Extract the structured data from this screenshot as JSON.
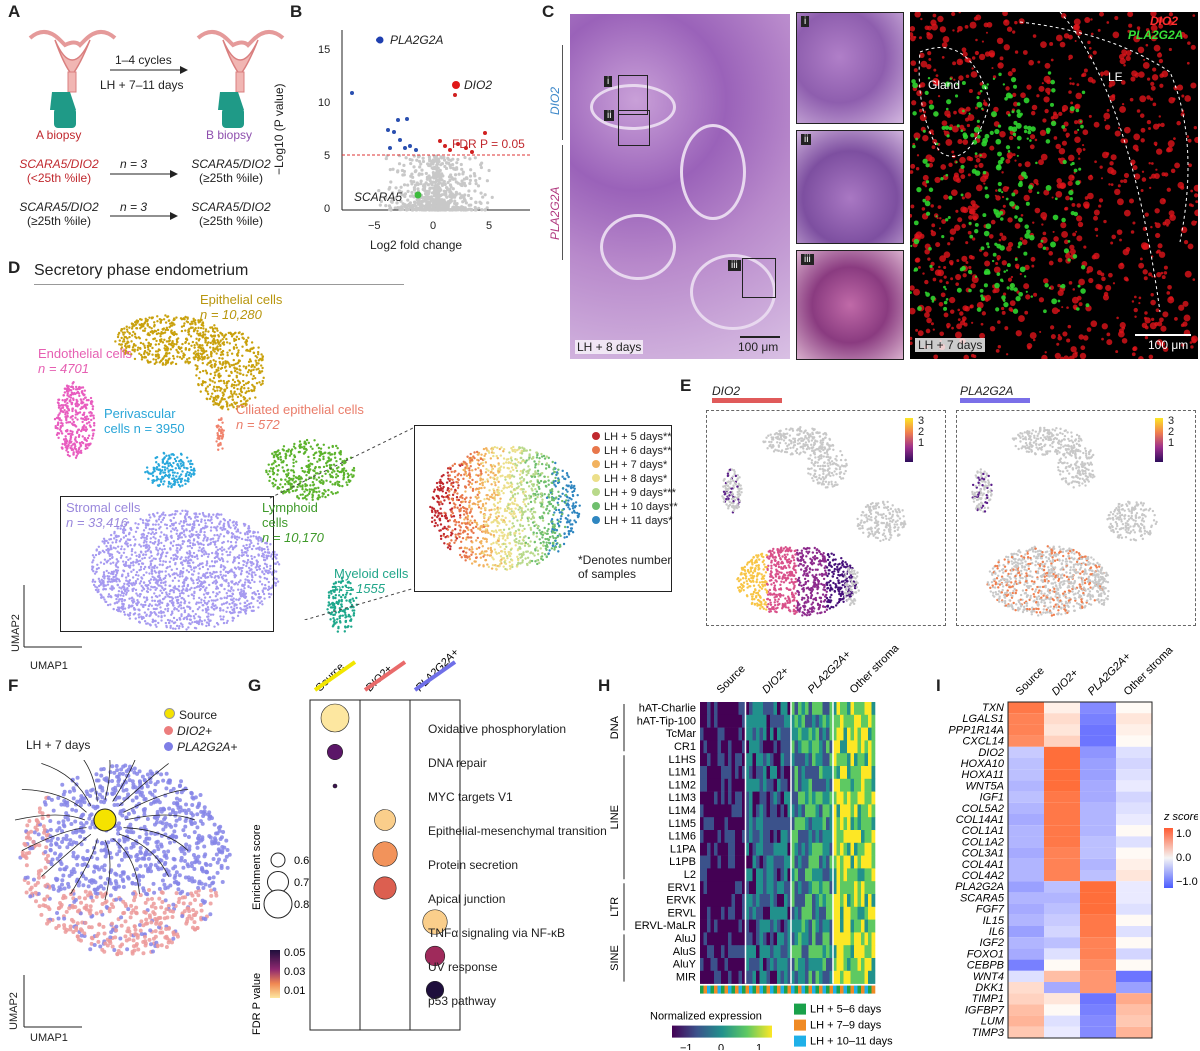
{
  "panels": {
    "A": {
      "label": "A",
      "cycles": "1–4 cycles",
      "timing": "LH + 7–11 days",
      "a_biopsy": "A biopsy",
      "b_biopsy": "B biopsy",
      "row1_left": [
        "SCARA5/DIO2",
        "(<25th %ile)"
      ],
      "row1_n": "n = 3",
      "row1_right": [
        "SCARA5/DIO2",
        "(≥25th %ile)"
      ],
      "row2_left": [
        "SCARA5/DIO2",
        "(≥25th %ile)"
      ],
      "row2_n": "n = 3",
      "row2_right": [
        "SCARA5/DIO2",
        "(≥25th %ile)"
      ]
    },
    "B": {
      "label": "B",
      "ylabel": "−Log10 (P value)",
      "xlabel": "Log2 fold change",
      "fdr_label": "FDR P = 0.05",
      "gene_pla2g2a": "PLA2G2A",
      "gene_dio2": "DIO2",
      "gene_scara5": "SCARA5",
      "x_ticks": [
        "−5",
        "0",
        "5"
      ],
      "y_ticks": [
        "0",
        "5",
        "10",
        "15"
      ]
    },
    "C": {
      "label": "C",
      "side_dio2": "DIO2",
      "side_pla2g2a": "PLA2G2A",
      "box_i": "i",
      "box_ii": "ii",
      "box_iii": "iii",
      "hist_caption": "LH + 8 days",
      "scale": "100 μm",
      "fluor_dio2": "DIO2",
      "fluor_pla2g2a": "PLA2G2A",
      "gland": "Gland",
      "le": "LE",
      "fluor_caption": "LH + 7 days",
      "fluor_scale": "100 μm"
    },
    "D": {
      "label": "D",
      "title": "Secretory phase endometrium",
      "epithelial": [
        "Epithelial cells",
        "n = 10,280"
      ],
      "endothelial": [
        "Endothelial cells",
        "n = 4701"
      ],
      "ciliated": [
        "Ciliated epithelial cells",
        "n = 572"
      ],
      "perivascular": [
        "Perivascular",
        "cells n = 3950"
      ],
      "lymphoid": [
        "Lymphoid",
        "cells",
        "n = 10,170"
      ],
      "stromal": [
        "Stromal cells",
        "n = 33,416"
      ],
      "myeloid": [
        "Myeloid cells",
        "n = 1555"
      ],
      "umap1": "UMAP1",
      "umap2": "UMAP2",
      "legend": [
        "LH + 5 days**",
        "LH + 6 days**",
        "LH + 7 days*",
        "LH + 8 days*",
        "LH + 9 days***",
        "LH + 10 days**",
        "LH + 11 days*"
      ],
      "legend_colors": [
        "#c0282e",
        "#e8774b",
        "#f2b25e",
        "#ecdf8a",
        "#b8d98a",
        "#6fbf6e",
        "#2f86c0"
      ],
      "footnote": [
        "*Denotes number",
        "of samples"
      ]
    },
    "E": {
      "label": "E",
      "left_title": "DIO2",
      "right_title": "PLA2G2A",
      "scale_ticks": [
        "3",
        "2",
        "1"
      ],
      "left_bar_color": "#e05a5a",
      "right_bar_color": "#7a6fe8"
    },
    "F": {
      "label": "F",
      "time": "LH + 7 days",
      "legend": [
        "Source",
        "DIO2+",
        "PLA2G2A+"
      ],
      "legend_colors": [
        "#f5e300",
        "#ec7d7d",
        "#7e7ee6"
      ],
      "umap1": "UMAP1",
      "umap2": "UMAP2"
    },
    "G": {
      "label": "G",
      "columns": [
        "Source",
        "DIO2+",
        "PLA2G2A+"
      ],
      "column_colors": [
        "#f2e600",
        "#e96a6a",
        "#6f6fe8"
      ],
      "pathways": [
        "Oxidative phosphorylation",
        "DNA repair",
        "MYC targets V1",
        "Epithelial-mesenchymal transition",
        "Protein secretion",
        "Apical junction",
        "TNFα signaling via NF-κB",
        "UV response",
        "p53 pathway"
      ],
      "enrichment_title": "Enrichment score",
      "enrichment_ticks": [
        "0.6",
        "0.7",
        "0.8"
      ],
      "fdr_title": "FDR P value",
      "fdr_ticks": [
        "0.05",
        "0.03",
        "0.01"
      ],
      "dots": [
        {
          "col": 0,
          "row": 0,
          "es": 0.8,
          "fdr": 0.005
        },
        {
          "col": 0,
          "row": 1,
          "es": 0.62,
          "fdr": 0.04
        },
        {
          "col": 0,
          "row": 2,
          "es": 0.45,
          "fdr": 0.045
        },
        {
          "col": 1,
          "row": 3,
          "es": 0.7,
          "fdr": 0.008
        },
        {
          "col": 1,
          "row": 4,
          "es": 0.75,
          "fdr": 0.015
        },
        {
          "col": 1,
          "row": 5,
          "es": 0.72,
          "fdr": 0.022
        },
        {
          "col": 2,
          "row": 6,
          "es": 0.75,
          "fdr": 0.008
        },
        {
          "col": 2,
          "row": 7,
          "es": 0.68,
          "fdr": 0.032
        },
        {
          "col": 2,
          "row": 8,
          "es": 0.65,
          "fdr": 0.05
        }
      ]
    },
    "H": {
      "label": "H",
      "columns": [
        "Source",
        "DIO2+",
        "PLA2G2A+",
        "Other stroma"
      ],
      "groups": [
        {
          "name": "DNA",
          "rows": [
            "hAT-Charlie",
            "hAT-Tip-100",
            "TcMar",
            "CR1"
          ]
        },
        {
          "name": "LINE",
          "rows": [
            "L1HS",
            "L1M1",
            "L1M2",
            "L1M3",
            "L1M4",
            "L1M5",
            "L1M6",
            "L1PA",
            "L1PB",
            "L2"
          ]
        },
        {
          "name": "LTR",
          "rows": [
            "ERV1",
            "ERVK",
            "ERVL",
            "ERVL-MaLR"
          ]
        },
        {
          "name": "SINE",
          "rows": [
            "AluJ",
            "AluS",
            "AluY",
            "MIR"
          ]
        }
      ],
      "colorbar_title": "Normalized expression",
      "colorbar_ticks": [
        "−1",
        "0",
        "1"
      ],
      "legend": [
        "LH + 5–6 days",
        "LH + 7–9 days",
        "LH + 10–11 days"
      ],
      "legend_colors": [
        "#1aa14a",
        "#f08a24",
        "#1fb0e8"
      ]
    },
    "I": {
      "label": "I",
      "columns": [
        "Source",
        "DIO2+",
        "PLA2G2A+",
        "Other stroma"
      ],
      "genes": [
        "TXN",
        "LGALS1",
        "PPP1R14A",
        "CXCL14",
        "DIO2",
        "HOXA10",
        "HOXA11",
        "WNT5A",
        "IGF1",
        "COL5A2",
        "COL14A1",
        "COL1A1",
        "COL1A2",
        "COL3A1",
        "COL4A1",
        "COL4A2",
        "PLA2G2A",
        "SCARA5",
        "FGF7",
        "IL15",
        "IL6",
        "IGF2",
        "FOXO1",
        "CEBPB",
        "WNT4",
        "DKK1",
        "TIMP1",
        "IGFBP7",
        "LUM",
        "TIMP3"
      ],
      "values": [
        [
          1.3,
          0.1,
          -1.0,
          0.0
        ],
        [
          1.2,
          0.3,
          -1.1,
          0.2
        ],
        [
          1.2,
          0.2,
          -1.2,
          0.1
        ],
        [
          1.1,
          0.4,
          -1.2,
          0.0
        ],
        [
          -0.4,
          1.4,
          -0.9,
          -0.2
        ],
        [
          -0.5,
          1.4,
          -0.8,
          -0.3
        ],
        [
          -0.5,
          1.4,
          -0.8,
          -0.2
        ],
        [
          -0.6,
          1.4,
          -0.7,
          -0.1
        ],
        [
          -0.5,
          1.3,
          -0.7,
          -0.3
        ],
        [
          -0.6,
          1.3,
          -0.6,
          -0.2
        ],
        [
          -0.7,
          1.3,
          -0.6,
          -0.1
        ],
        [
          -0.6,
          1.3,
          -0.6,
          0.0
        ],
        [
          -0.6,
          1.3,
          -0.5,
          -0.2
        ],
        [
          -0.7,
          1.2,
          -0.5,
          0.0
        ],
        [
          -0.6,
          1.2,
          -0.6,
          0.1
        ],
        [
          -0.6,
          1.2,
          -0.5,
          0.2
        ],
        [
          -0.8,
          -0.5,
          1.4,
          -0.1
        ],
        [
          -0.6,
          -0.6,
          1.4,
          -0.1
        ],
        [
          -0.7,
          -0.5,
          1.4,
          -0.2
        ],
        [
          -0.6,
          -0.4,
          1.3,
          0.0
        ],
        [
          -0.8,
          -0.3,
          1.3,
          -0.2
        ],
        [
          -0.6,
          -0.5,
          1.2,
          0.0
        ],
        [
          -0.7,
          -0.2,
          1.2,
          -0.3
        ],
        [
          -1.1,
          0.0,
          1.1,
          0.0
        ],
        [
          -0.2,
          0.6,
          1.0,
          -1.2
        ],
        [
          0.3,
          -0.7,
          1.0,
          -0.8
        ],
        [
          0.4,
          0.2,
          -1.2,
          0.8
        ],
        [
          0.6,
          0.0,
          -1.1,
          0.6
        ],
        [
          0.7,
          -0.2,
          -1.0,
          0.5
        ],
        [
          0.5,
          -0.1,
          -1.0,
          0.7
        ]
      ],
      "colorbar_title": "z score",
      "colorbar_ticks": [
        "1.0",
        "0.0",
        "−1.0"
      ]
    }
  }
}
